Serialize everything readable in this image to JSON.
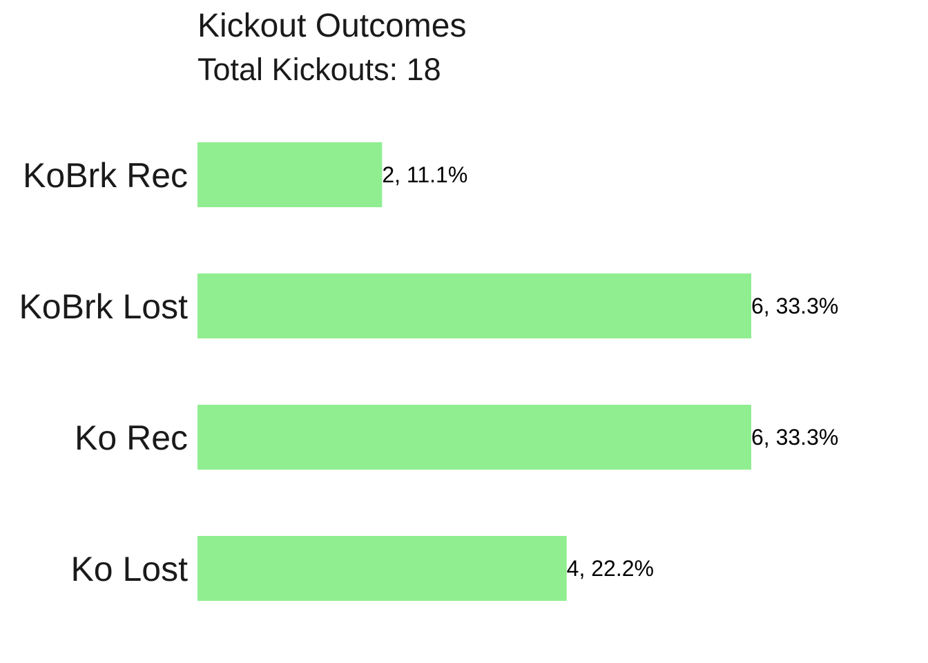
{
  "chart_data": {
    "type": "bar",
    "orientation": "horizontal",
    "title": "Kickout Outcomes",
    "subtitle": "Total Kickouts: 18",
    "categories": [
      "KoBrk Rec",
      "KoBrk Lost",
      "Ko Rec",
      "Ko Lost"
    ],
    "values": [
      2,
      6,
      6,
      4
    ],
    "data_labels": [
      "2, 11.1%",
      "6, 33.3%",
      "6, 33.3%",
      "4, 22.2%"
    ],
    "xlim": [
      0,
      6
    ],
    "xlabel": "",
    "ylabel": "",
    "grid": false,
    "bar_color": "#90EE90"
  }
}
